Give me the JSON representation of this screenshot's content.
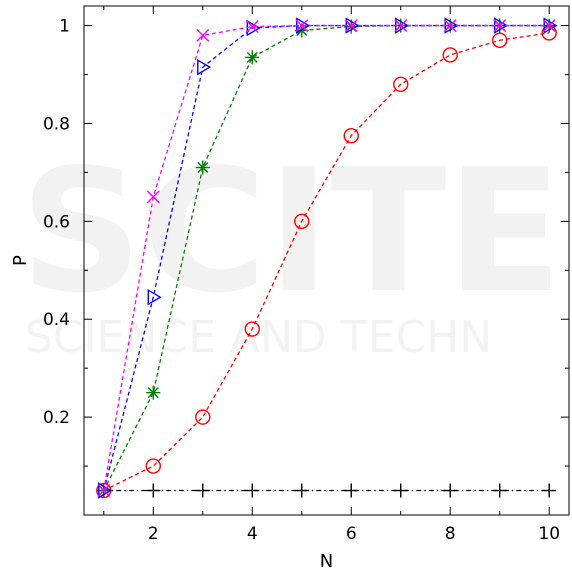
{
  "chart_data": {
    "type": "line",
    "title": "",
    "xlabel": "N",
    "ylabel": "P",
    "xlim": [
      0.6,
      10.4
    ],
    "ylim": [
      0.0,
      1.04
    ],
    "xticks": [
      2,
      4,
      6,
      8,
      10
    ],
    "yticks": [
      0.2,
      0.4,
      0.6,
      0.8,
      1
    ],
    "ytick_labels": [
      "0.2",
      "0.4",
      "0.6",
      "0.8",
      "1"
    ],
    "grid": false,
    "x": [
      1,
      2,
      3,
      4,
      5,
      6,
      7,
      8,
      9,
      10
    ],
    "series": [
      {
        "marker": "plus",
        "color": "#000000",
        "values": [
          0.05,
          0.05,
          0.05,
          0.05,
          0.05,
          0.05,
          0.05,
          0.05,
          0.05,
          0.05
        ]
      },
      {
        "marker": "circle",
        "color": "#ff0000",
        "values": [
          0.05,
          0.1,
          0.2,
          0.38,
          0.6,
          0.775,
          0.88,
          0.94,
          0.97,
          0.985
        ]
      },
      {
        "marker": "asterisk",
        "color": "#008000",
        "values": [
          0.05,
          0.25,
          0.71,
          0.935,
          0.99,
          0.998,
          1.0,
          1.0,
          1.0,
          1.0
        ]
      },
      {
        "marker": "triangle-right",
        "color": "#0000ff",
        "values": [
          0.05,
          0.445,
          0.915,
          0.995,
          1.0,
          1.0,
          1.0,
          1.0,
          1.0,
          1.0
        ]
      },
      {
        "marker": "x",
        "color": "#ff00ff",
        "values": [
          0.05,
          0.65,
          0.98,
          0.998,
          1.0,
          1.0,
          1.0,
          1.0,
          1.0,
          1.0
        ]
      }
    ]
  },
  "watermark": {
    "big": "SCITE",
    "small": "SCIENCE AND TECHN"
  }
}
